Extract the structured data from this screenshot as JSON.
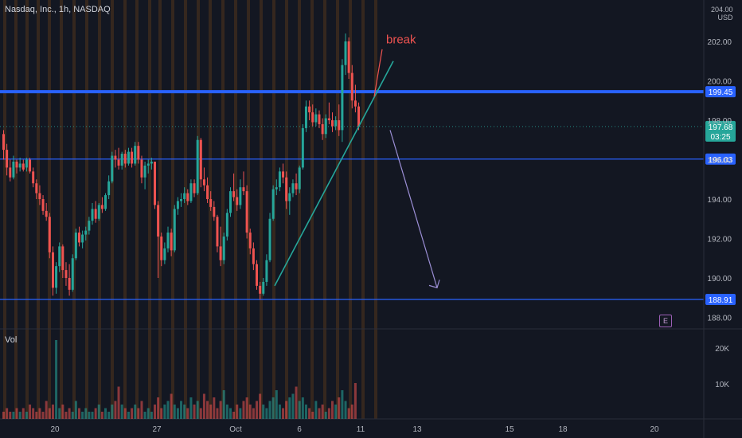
{
  "header": {
    "symbol_line": "Nasdaq, Inc., 1h, NASDAQ",
    "currency_top": "204.00",
    "currency": "USD",
    "volume_label": "Vol",
    "earnings_badge": "E"
  },
  "colors": {
    "up": "#26a69a",
    "down": "#ef5350",
    "level_line": "#2962ff",
    "trendline": "#26a69a",
    "projection_arrow": "#9c8fd6",
    "annotation_text": "#ef5350",
    "session_stripe": "#7b4a19"
  },
  "chart_data": {
    "type": "candlestick",
    "title": "Nasdaq, Inc., 1h, NASDAQ",
    "ylim": [
      187.5,
      204.0
    ],
    "y_ticks": [
      "188.00",
      "190.00",
      "192.00",
      "194.00",
      "196.00",
      "198.00",
      "200.00",
      "202.00"
    ],
    "x_ticks": [
      "20",
      "27",
      "Oct",
      "6",
      "11",
      "13",
      "15",
      "18",
      "20"
    ],
    "price_labels": [
      {
        "value": 199.45,
        "label": "199.45"
      },
      {
        "value": 196.03,
        "label": "196.03"
      },
      {
        "value": 188.91,
        "label": "188.91"
      }
    ],
    "last_price": {
      "value": 197.68,
      "label": "197.68",
      "countdown": "03:25"
    },
    "horizontal_levels": [
      199.45,
      196.03,
      188.91
    ],
    "annotations": [
      {
        "text": "break",
        "price": 202.1
      }
    ],
    "trendline": {
      "from_price": 189.6,
      "to_price": 201.0
    },
    "projection": {
      "from_price": 197.5,
      "to_price": 189.5
    },
    "volume": {
      "ticks": [
        "20K",
        "10K"
      ]
    },
    "candles": [
      {
        "o": 197.3,
        "h": 197.5,
        "l": 196.0,
        "c": 196.5
      },
      {
        "o": 196.5,
        "h": 196.8,
        "l": 195.2,
        "c": 195.6
      },
      {
        "o": 195.6,
        "h": 196.0,
        "l": 194.9,
        "c": 195.1
      },
      {
        "o": 195.1,
        "h": 196.2,
        "l": 195.0,
        "c": 195.9
      },
      {
        "o": 195.9,
        "h": 196.0,
        "l": 195.3,
        "c": 195.6
      },
      {
        "o": 195.6,
        "h": 196.1,
        "l": 195.4,
        "c": 195.8
      },
      {
        "o": 195.8,
        "h": 196.0,
        "l": 195.4,
        "c": 195.5
      },
      {
        "o": 195.6,
        "h": 196.1,
        "l": 195.4,
        "c": 196.0
      },
      {
        "o": 196.0,
        "h": 196.1,
        "l": 195.3,
        "c": 195.4
      },
      {
        "o": 195.4,
        "h": 195.6,
        "l": 194.6,
        "c": 194.8
      },
      {
        "o": 194.8,
        "h": 195.0,
        "l": 194.0,
        "c": 194.3
      },
      {
        "o": 194.3,
        "h": 194.7,
        "l": 193.7,
        "c": 194.0
      },
      {
        "o": 194.0,
        "h": 194.2,
        "l": 193.2,
        "c": 193.4
      },
      {
        "o": 193.4,
        "h": 193.8,
        "l": 192.9,
        "c": 193.1
      },
      {
        "o": 193.1,
        "h": 193.3,
        "l": 191.0,
        "c": 191.3
      },
      {
        "o": 191.3,
        "h": 191.6,
        "l": 189.1,
        "c": 189.5
      },
      {
        "o": 189.5,
        "h": 190.8,
        "l": 189.2,
        "c": 190.6
      },
      {
        "o": 190.6,
        "h": 191.8,
        "l": 190.3,
        "c": 191.6
      },
      {
        "o": 191.6,
        "h": 191.7,
        "l": 190.0,
        "c": 190.4
      },
      {
        "o": 190.4,
        "h": 190.8,
        "l": 189.6,
        "c": 190.0
      },
      {
        "o": 190.0,
        "h": 190.7,
        "l": 189.1,
        "c": 189.4
      },
      {
        "o": 189.4,
        "h": 191.2,
        "l": 189.3,
        "c": 191.0
      },
      {
        "o": 191.0,
        "h": 192.5,
        "l": 190.9,
        "c": 192.3
      },
      {
        "o": 192.3,
        "h": 192.6,
        "l": 191.6,
        "c": 191.8
      },
      {
        "o": 191.8,
        "h": 192.4,
        "l": 191.5,
        "c": 192.2
      },
      {
        "o": 192.2,
        "h": 192.6,
        "l": 191.9,
        "c": 192.4
      },
      {
        "o": 192.4,
        "h": 193.1,
        "l": 192.2,
        "c": 192.9
      },
      {
        "o": 192.9,
        "h": 193.8,
        "l": 192.7,
        "c": 193.5
      },
      {
        "o": 193.5,
        "h": 193.9,
        "l": 192.8,
        "c": 193.0
      },
      {
        "o": 193.0,
        "h": 193.8,
        "l": 192.9,
        "c": 193.7
      },
      {
        "o": 193.7,
        "h": 194.1,
        "l": 193.3,
        "c": 193.5
      },
      {
        "o": 193.5,
        "h": 194.3,
        "l": 193.4,
        "c": 194.2
      },
      {
        "o": 194.2,
        "h": 195.2,
        "l": 194.0,
        "c": 194.9
      },
      {
        "o": 194.9,
        "h": 196.4,
        "l": 194.8,
        "c": 196.2
      },
      {
        "o": 196.2,
        "h": 196.5,
        "l": 195.6,
        "c": 196.0
      },
      {
        "o": 196.0,
        "h": 196.6,
        "l": 195.5,
        "c": 195.7
      },
      {
        "o": 195.7,
        "h": 196.4,
        "l": 195.5,
        "c": 196.3
      },
      {
        "o": 196.3,
        "h": 196.5,
        "l": 195.6,
        "c": 195.8
      },
      {
        "o": 195.8,
        "h": 196.6,
        "l": 195.7,
        "c": 196.4
      },
      {
        "o": 196.4,
        "h": 196.6,
        "l": 195.6,
        "c": 195.8
      },
      {
        "o": 195.8,
        "h": 196.9,
        "l": 195.7,
        "c": 196.7
      },
      {
        "o": 196.7,
        "h": 196.9,
        "l": 195.8,
        "c": 196.0
      },
      {
        "o": 196.0,
        "h": 196.2,
        "l": 194.8,
        "c": 195.1
      },
      {
        "o": 195.1,
        "h": 195.9,
        "l": 194.5,
        "c": 195.7
      },
      {
        "o": 195.7,
        "h": 196.0,
        "l": 195.3,
        "c": 195.8
      },
      {
        "o": 195.8,
        "h": 196.1,
        "l": 195.5,
        "c": 195.9
      },
      {
        "o": 195.9,
        "h": 195.9,
        "l": 193.5,
        "c": 193.7
      },
      {
        "o": 193.7,
        "h": 193.9,
        "l": 190.0,
        "c": 192.1
      },
      {
        "o": 192.1,
        "h": 192.3,
        "l": 190.6,
        "c": 190.9
      },
      {
        "o": 190.9,
        "h": 191.8,
        "l": 190.7,
        "c": 191.5
      },
      {
        "o": 191.5,
        "h": 192.6,
        "l": 191.3,
        "c": 192.3
      },
      {
        "o": 192.3,
        "h": 192.5,
        "l": 191.1,
        "c": 191.4
      },
      {
        "o": 191.4,
        "h": 193.7,
        "l": 191.3,
        "c": 193.5
      },
      {
        "o": 193.5,
        "h": 194.1,
        "l": 193.2,
        "c": 193.9
      },
      {
        "o": 193.9,
        "h": 194.3,
        "l": 193.6,
        "c": 194.0
      },
      {
        "o": 194.0,
        "h": 194.6,
        "l": 193.8,
        "c": 194.3
      },
      {
        "o": 194.3,
        "h": 194.5,
        "l": 193.7,
        "c": 193.9
      },
      {
        "o": 193.9,
        "h": 195.0,
        "l": 193.8,
        "c": 194.8
      },
      {
        "o": 194.8,
        "h": 195.0,
        "l": 194.1,
        "c": 194.3
      },
      {
        "o": 194.3,
        "h": 197.2,
        "l": 194.2,
        "c": 197.0
      },
      {
        "o": 197.0,
        "h": 197.1,
        "l": 194.6,
        "c": 195.0
      },
      {
        "o": 195.0,
        "h": 195.6,
        "l": 194.4,
        "c": 194.7
      },
      {
        "o": 194.7,
        "h": 195.1,
        "l": 193.8,
        "c": 194.0
      },
      {
        "o": 194.0,
        "h": 194.4,
        "l": 193.4,
        "c": 193.6
      },
      {
        "o": 193.6,
        "h": 193.9,
        "l": 192.9,
        "c": 193.1
      },
      {
        "o": 193.1,
        "h": 193.2,
        "l": 191.3,
        "c": 191.6
      },
      {
        "o": 191.6,
        "h": 192.6,
        "l": 190.6,
        "c": 190.9
      },
      {
        "o": 190.9,
        "h": 192.3,
        "l": 190.7,
        "c": 192.1
      },
      {
        "o": 192.1,
        "h": 193.5,
        "l": 191.9,
        "c": 193.3
      },
      {
        "o": 193.3,
        "h": 194.6,
        "l": 193.1,
        "c": 194.4
      },
      {
        "o": 194.4,
        "h": 195.3,
        "l": 193.9,
        "c": 194.1
      },
      {
        "o": 194.1,
        "h": 194.5,
        "l": 193.4,
        "c": 193.7
      },
      {
        "o": 193.7,
        "h": 195.0,
        "l": 193.5,
        "c": 194.6
      },
      {
        "o": 194.6,
        "h": 195.4,
        "l": 194.2,
        "c": 194.4
      },
      {
        "o": 194.4,
        "h": 194.7,
        "l": 192.0,
        "c": 192.3
      },
      {
        "o": 192.3,
        "h": 192.5,
        "l": 191.2,
        "c": 191.5
      },
      {
        "o": 191.5,
        "h": 191.8,
        "l": 190.4,
        "c": 190.7
      },
      {
        "o": 190.7,
        "h": 190.9,
        "l": 189.4,
        "c": 189.6
      },
      {
        "o": 189.6,
        "h": 189.8,
        "l": 188.9,
        "c": 189.2
      },
      {
        "o": 189.2,
        "h": 190.0,
        "l": 189.1,
        "c": 189.8
      },
      {
        "o": 189.8,
        "h": 191.2,
        "l": 189.6,
        "c": 190.9
      },
      {
        "o": 190.9,
        "h": 193.3,
        "l": 190.8,
        "c": 193.0
      },
      {
        "o": 193.0,
        "h": 194.7,
        "l": 192.9,
        "c": 194.5
      },
      {
        "o": 194.5,
        "h": 195.0,
        "l": 194.2,
        "c": 194.6
      },
      {
        "o": 194.6,
        "h": 195.6,
        "l": 194.4,
        "c": 195.4
      },
      {
        "o": 195.4,
        "h": 195.8,
        "l": 194.8,
        "c": 195.1
      },
      {
        "o": 195.1,
        "h": 195.4,
        "l": 193.5,
        "c": 193.9
      },
      {
        "o": 193.9,
        "h": 194.6,
        "l": 193.2,
        "c": 194.3
      },
      {
        "o": 194.3,
        "h": 195.0,
        "l": 194.1,
        "c": 194.8
      },
      {
        "o": 194.8,
        "h": 195.3,
        "l": 194.2,
        "c": 194.5
      },
      {
        "o": 194.5,
        "h": 195.7,
        "l": 194.3,
        "c": 195.6
      },
      {
        "o": 195.6,
        "h": 197.8,
        "l": 195.5,
        "c": 197.6
      },
      {
        "o": 197.6,
        "h": 199.0,
        "l": 197.4,
        "c": 198.7
      },
      {
        "o": 198.7,
        "h": 199.0,
        "l": 198.0,
        "c": 198.4
      },
      {
        "o": 198.4,
        "h": 198.8,
        "l": 197.7,
        "c": 197.9
      },
      {
        "o": 197.9,
        "h": 198.6,
        "l": 197.7,
        "c": 198.3
      },
      {
        "o": 198.3,
        "h": 198.5,
        "l": 197.6,
        "c": 197.8
      },
      {
        "o": 197.8,
        "h": 198.1,
        "l": 197.0,
        "c": 197.3
      },
      {
        "o": 197.3,
        "h": 198.3,
        "l": 197.1,
        "c": 198.1
      },
      {
        "o": 198.1,
        "h": 198.9,
        "l": 197.8,
        "c": 198.0
      },
      {
        "o": 198.0,
        "h": 198.4,
        "l": 197.4,
        "c": 197.7
      },
      {
        "o": 197.7,
        "h": 198.2,
        "l": 197.5,
        "c": 198.0
      },
      {
        "o": 198.0,
        "h": 198.8,
        "l": 197.2,
        "c": 197.5
      },
      {
        "o": 197.5,
        "h": 201.1,
        "l": 196.9,
        "c": 200.8
      },
      {
        "o": 200.8,
        "h": 202.4,
        "l": 200.3,
        "c": 202.0
      },
      {
        "o": 202.0,
        "h": 202.2,
        "l": 200.1,
        "c": 200.4
      },
      {
        "o": 200.4,
        "h": 200.8,
        "l": 198.6,
        "c": 199.0
      },
      {
        "o": 199.0,
        "h": 199.8,
        "l": 198.4,
        "c": 198.7
      },
      {
        "o": 198.7,
        "h": 198.9,
        "l": 197.5,
        "c": 197.68
      }
    ]
  }
}
